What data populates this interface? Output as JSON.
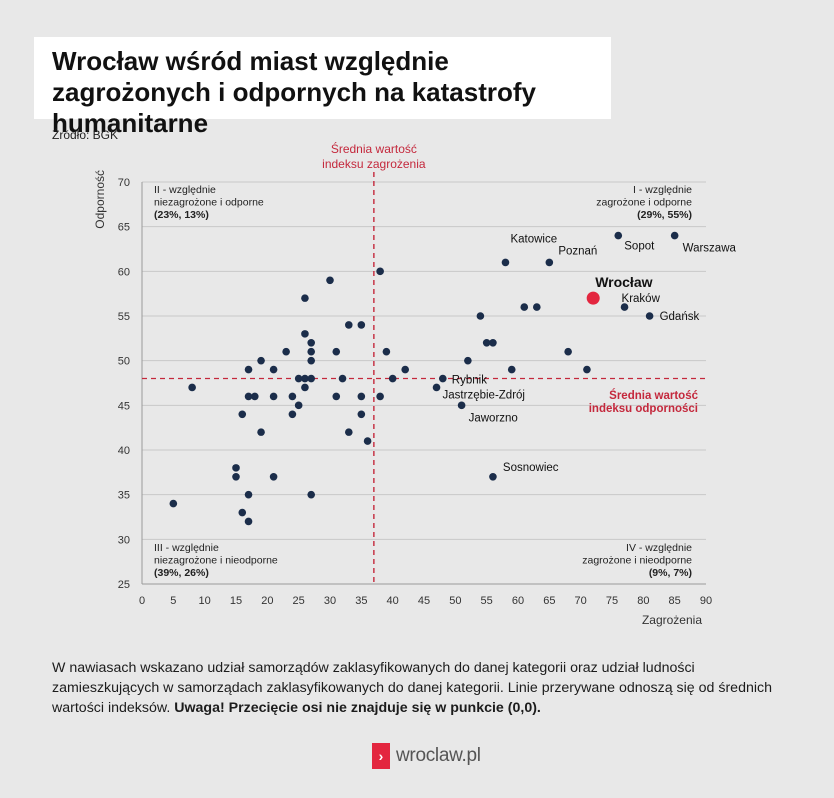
{
  "title": "Wrocław wśród miast względnie zagrożonych i odpornych na katastrofy humanitarne",
  "source": "Źródło: BGK",
  "note_text": "W nawiasach wskazano udział samorządów zaklasyfikowanych do danej kategorii oraz udział ludności zamieszkujących w samorządach zaklasyfikowanych do danej kategorii. Linie przerywane odnoszą się od średnich wartości indeksów.",
  "note_bold": "Uwaga! Przecięcie osi nie znajduje się w punkcie (0,0).",
  "logo": {
    "mark": "›",
    "text": "wroclaw.pl"
  },
  "colors": {
    "point": "#1b2d4a",
    "highlight": "#e3263f",
    "mean_line": "#c4283c",
    "grid": "#c8c8c8",
    "background": "#e8e8e8"
  },
  "chart_data": {
    "type": "scatter",
    "xlabel": "Zagrożenia",
    "ylabel": "Odporność",
    "xlim": [
      0,
      90
    ],
    "ylim": [
      25,
      70
    ],
    "xticks": [
      0,
      5,
      10,
      15,
      20,
      25,
      30,
      35,
      40,
      45,
      50,
      55,
      60,
      65,
      70,
      75,
      80,
      85,
      90
    ],
    "yticks": [
      25,
      30,
      35,
      40,
      45,
      50,
      55,
      60,
      65,
      70
    ],
    "grid": "horizontal",
    "mean_x": 37,
    "mean_y": 48,
    "mean_x_label": [
      "Średnia wartość",
      "indeksu zagrożenia"
    ],
    "mean_y_label": [
      "Średnia wartość",
      "indeksu odporności"
    ],
    "quadrants": [
      {
        "lines": [
          "II - względnie",
          "niezagrożone i odporne",
          "(23%, 13%)"
        ],
        "position": "top-left"
      },
      {
        "lines": [
          "I - względnie",
          "zagrożone i odporne",
          "(29%, 55%)"
        ],
        "position": "top-right"
      },
      {
        "lines": [
          "III - względnie",
          "niezagrożone i nieodporne",
          "(39%, 26%)"
        ],
        "position": "bottom-left"
      },
      {
        "lines": [
          "IV - względnie",
          "zagrożone i nieodporne",
          "(9%, 7%)"
        ],
        "position": "bottom-right"
      }
    ],
    "points": [
      {
        "x": 5,
        "y": 34
      },
      {
        "x": 8,
        "y": 47
      },
      {
        "x": 15,
        "y": 38
      },
      {
        "x": 15,
        "y": 37
      },
      {
        "x": 16,
        "y": 44
      },
      {
        "x": 16,
        "y": 33
      },
      {
        "x": 17,
        "y": 49
      },
      {
        "x": 17,
        "y": 46
      },
      {
        "x": 17,
        "y": 35
      },
      {
        "x": 17,
        "y": 32
      },
      {
        "x": 18,
        "y": 46
      },
      {
        "x": 19,
        "y": 50
      },
      {
        "x": 19,
        "y": 42
      },
      {
        "x": 21,
        "y": 49
      },
      {
        "x": 21,
        "y": 46
      },
      {
        "x": 21,
        "y": 37
      },
      {
        "x": 23,
        "y": 51
      },
      {
        "x": 24,
        "y": 46
      },
      {
        "x": 24,
        "y": 44
      },
      {
        "x": 25,
        "y": 48
      },
      {
        "x": 25,
        "y": 45
      },
      {
        "x": 26,
        "y": 57
      },
      {
        "x": 26,
        "y": 53
      },
      {
        "x": 26,
        "y": 48
      },
      {
        "x": 26,
        "y": 47
      },
      {
        "x": 27,
        "y": 52
      },
      {
        "x": 27,
        "y": 51
      },
      {
        "x": 27,
        "y": 50
      },
      {
        "x": 27,
        "y": 48
      },
      {
        "x": 27,
        "y": 35
      },
      {
        "x": 30,
        "y": 59
      },
      {
        "x": 31,
        "y": 51
      },
      {
        "x": 31,
        "y": 46
      },
      {
        "x": 32,
        "y": 48
      },
      {
        "x": 33,
        "y": 54
      },
      {
        "x": 33,
        "y": 42
      },
      {
        "x": 35,
        "y": 54
      },
      {
        "x": 35,
        "y": 46
      },
      {
        "x": 35,
        "y": 44
      },
      {
        "x": 36,
        "y": 41
      },
      {
        "x": 38,
        "y": 60
      },
      {
        "x": 38,
        "y": 46
      },
      {
        "x": 39,
        "y": 51
      },
      {
        "x": 40,
        "y": 48
      },
      {
        "x": 42,
        "y": 49
      },
      {
        "x": 47,
        "y": 47
      },
      {
        "x": 48,
        "y": 48,
        "label": "Rybnik"
      },
      {
        "x": 51,
        "y": 45,
        "label": "Jaworzno"
      },
      {
        "x": 52,
        "y": 50
      },
      {
        "x": 54,
        "y": 55
      },
      {
        "x": 55,
        "y": 52
      },
      {
        "x": 56,
        "y": 52
      },
      {
        "x": 56,
        "y": 37,
        "label": "Sosnowiec"
      },
      {
        "x": 58,
        "y": 61,
        "label": "Katowice"
      },
      {
        "x": 59,
        "y": 49
      },
      {
        "x": 61,
        "y": 56
      },
      {
        "x": 63,
        "y": 56
      },
      {
        "x": 65,
        "y": 61,
        "label": "Poznań"
      },
      {
        "x": 68,
        "y": 51
      },
      {
        "x": 71,
        "y": 49
      },
      {
        "x": 76,
        "y": 64,
        "label": "Sopot"
      },
      {
        "x": 77,
        "y": 56,
        "label": "Kraków"
      },
      {
        "x": 81,
        "y": 55,
        "label": "Gdańsk"
      },
      {
        "x": 85,
        "y": 64,
        "label": "Warszawa"
      },
      {
        "x": 72,
        "y": 57,
        "label": "Wrocław",
        "highlight": true
      }
    ],
    "extra_labels": [
      {
        "text": "Jastrzębie-Zdrój",
        "x": 47,
        "y": 47
      }
    ]
  }
}
